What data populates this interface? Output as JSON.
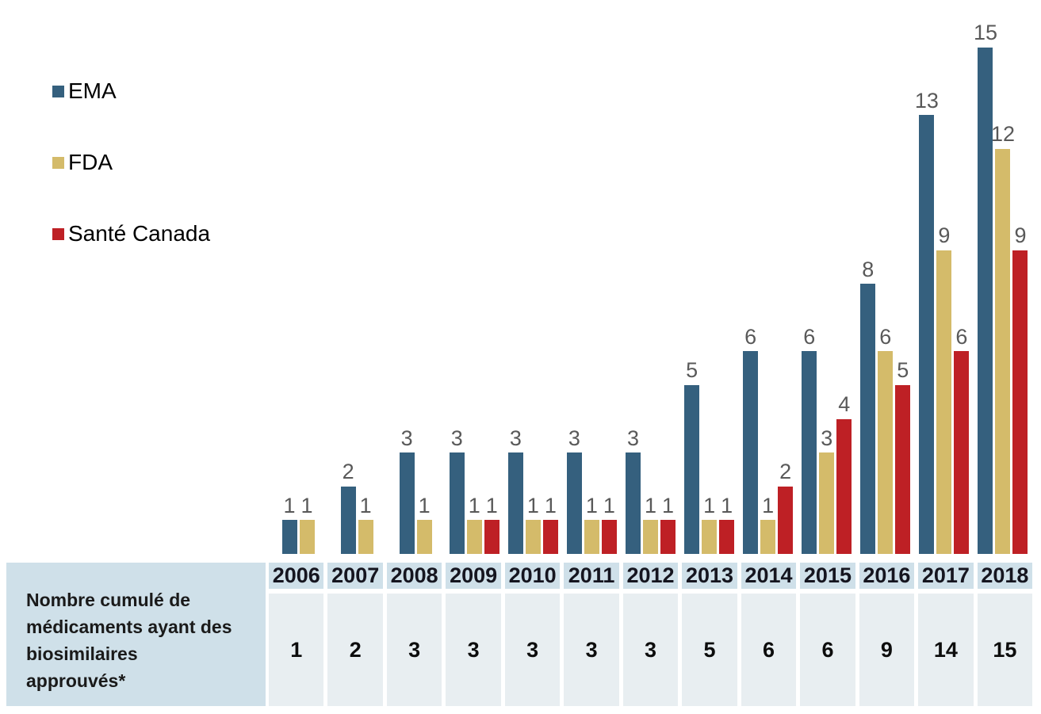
{
  "legend": {
    "items": [
      {
        "label": "EMA",
        "color": "#35607E",
        "icon": "ema-swatch-icon"
      },
      {
        "label": "FDA",
        "color": "#D4BB6A",
        "icon": "fda-swatch-icon"
      },
      {
        "label": "Santé Canada",
        "color": "#BE2025",
        "icon": "sante-canada-swatch-icon"
      }
    ]
  },
  "chart_data": {
    "type": "bar",
    "title": "",
    "xlabel": "",
    "ylabel": "",
    "categories": [
      "2006",
      "2007",
      "2008",
      "2009",
      "2010",
      "2011",
      "2012",
      "2013",
      "2014",
      "2015",
      "2016",
      "2017",
      "2018"
    ],
    "series": [
      {
        "id": "ema",
        "name": "EMA",
        "color": "#35607E",
        "values": [
          1,
          2,
          3,
          3,
          3,
          3,
          3,
          5,
          6,
          6,
          8,
          13,
          15
        ]
      },
      {
        "id": "fda",
        "name": "FDA",
        "color": "#D4BB6A",
        "values": [
          1,
          1,
          1,
          1,
          1,
          1,
          1,
          1,
          1,
          3,
          6,
          9,
          12
        ]
      },
      {
        "id": "sante-canada",
        "name": "Santé Canada",
        "color": "#BE2025",
        "values": [
          0,
          0,
          0,
          1,
          1,
          1,
          1,
          1,
          2,
          4,
          5,
          6,
          9
        ]
      }
    ],
    "ylim": [
      0,
      15
    ],
    "grid": false,
    "axes_shown": false,
    "value_labels_shown": true,
    "hide_zero_bars": true,
    "legend_position": "top-left",
    "value_label_color": "#595959"
  },
  "table": {
    "row_label": "Nombre cumulé de médicaments ayant des biosimilaires approuvés*",
    "row_label_lines": [
      "Nombre cumulé de",
      "médicaments ayant des",
      "biosimilaires",
      "approuvés*"
    ],
    "columns": [
      "2006",
      "2007",
      "2008",
      "2009",
      "2010",
      "2011",
      "2012",
      "2013",
      "2014",
      "2015",
      "2016",
      "2017",
      "2018"
    ],
    "values": [
      "1",
      "2",
      "3",
      "3",
      "3",
      "3",
      "3",
      "5",
      "6",
      "6",
      "9",
      "14",
      "15"
    ]
  },
  "colors": {
    "table_header_bg": "#CFE0E9",
    "table_value_bg": "#E8EEF1",
    "background": "#FFFFFF"
  }
}
